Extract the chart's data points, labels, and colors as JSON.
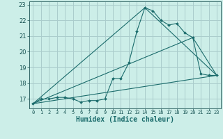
{
  "xlabel": "Humidex (Indice chaleur)",
  "bg_color": "#cceee8",
  "grid_color": "#aacccc",
  "line_color": "#1a6b6b",
  "xlim": [
    -0.5,
    23.5
  ],
  "ylim": [
    16.4,
    23.2
  ],
  "xticks": [
    0,
    1,
    2,
    3,
    4,
    5,
    6,
    7,
    8,
    9,
    10,
    11,
    12,
    13,
    14,
    15,
    16,
    17,
    18,
    19,
    20,
    21,
    22,
    23
  ],
  "yticks": [
    17,
    18,
    19,
    20,
    21,
    22,
    23
  ],
  "series1_x": [
    0,
    1,
    2,
    3,
    4,
    5,
    6,
    7,
    8,
    9,
    10,
    11,
    12,
    13,
    14,
    15,
    16,
    17,
    18,
    19,
    20,
    21,
    22,
    23
  ],
  "series1_y": [
    16.7,
    17.0,
    17.0,
    17.1,
    17.1,
    17.0,
    16.8,
    16.9,
    16.9,
    17.0,
    18.3,
    18.3,
    19.3,
    21.3,
    22.8,
    22.6,
    22.0,
    21.7,
    21.8,
    21.2,
    20.9,
    18.6,
    18.5,
    18.5
  ],
  "series2_x": [
    0,
    23
  ],
  "series2_y": [
    16.7,
    18.5
  ],
  "series3_x": [
    0,
    14,
    23
  ],
  "series3_y": [
    16.7,
    22.8,
    18.5
  ],
  "series4_x": [
    0,
    20,
    23
  ],
  "series4_y": [
    16.7,
    20.9,
    18.5
  ]
}
